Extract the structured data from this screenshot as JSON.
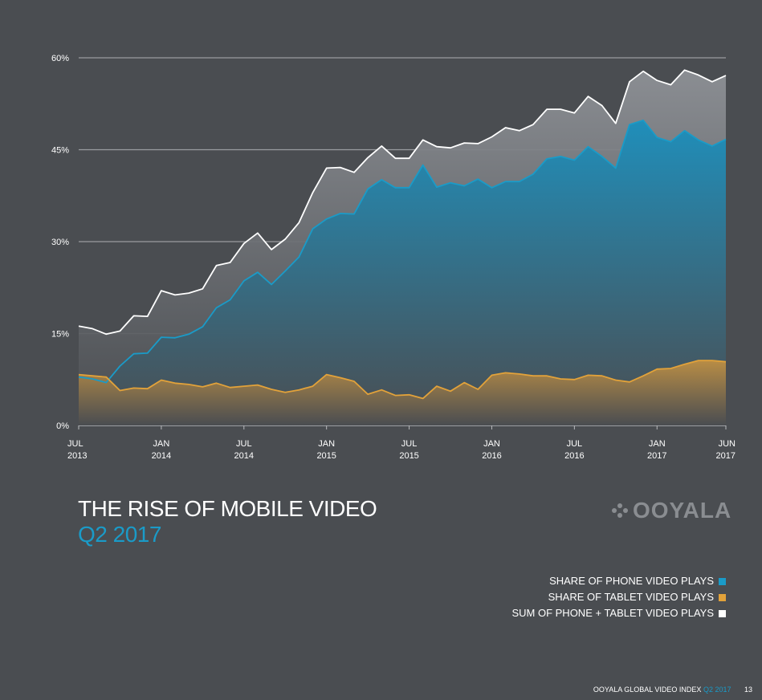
{
  "chart_data": {
    "type": "area",
    "ylim": [
      0,
      60
    ],
    "yticks": [
      "0%",
      "15%",
      "30%",
      "45%",
      "60%"
    ],
    "ytick_values": [
      0,
      15,
      30,
      45,
      60
    ],
    "xticks": [
      {
        "month": "JUL",
        "year": "2013",
        "index": 0
      },
      {
        "month": "JAN",
        "year": "2014",
        "index": 6
      },
      {
        "month": "JUL",
        "year": "2014",
        "index": 12
      },
      {
        "month": "JAN",
        "year": "2015",
        "index": 18
      },
      {
        "month": "JUL",
        "year": "2015",
        "index": 24
      },
      {
        "month": "JAN",
        "year": "2016",
        "index": 30
      },
      {
        "month": "JUL",
        "year": "2016",
        "index": 36
      },
      {
        "month": "JAN",
        "year": "2017",
        "index": 42
      },
      {
        "month": "JUN",
        "year": "2017",
        "index": 47
      }
    ],
    "grid": true,
    "legend_position": "bottom-right",
    "series": [
      {
        "name": "SUM OF PHONE + TABLET VIDEO PLAYS",
        "color": "#ffffff",
        "values": [
          16.2,
          15.8,
          14.9,
          15.4,
          17.9,
          17.8,
          22.0,
          21.3,
          21.6,
          22.3,
          26.1,
          26.6,
          29.7,
          31.4,
          28.7,
          30.4,
          33.1,
          38.0,
          42.0,
          42.1,
          41.3,
          43.7,
          45.6,
          43.6,
          43.6,
          46.6,
          45.5,
          45.3,
          46.1,
          46.0,
          47.1,
          48.6,
          48.1,
          49.1,
          51.6,
          51.6,
          51.0,
          53.7,
          52.2,
          49.3,
          56.1,
          57.8,
          56.3,
          55.6,
          58.0,
          57.2,
          56.1,
          57.1
        ]
      },
      {
        "name": "SHARE OF PHONE VIDEO PLAYS",
        "color": "#1a9bc8",
        "values": [
          7.9,
          7.6,
          7.0,
          9.7,
          11.7,
          11.8,
          14.4,
          14.3,
          14.9,
          16.1,
          19.2,
          20.5,
          23.6,
          25.0,
          23.0,
          25.2,
          27.5,
          32.1,
          33.7,
          34.6,
          34.5,
          38.6,
          40.1,
          38.8,
          38.8,
          42.5,
          38.9,
          39.6,
          39.1,
          40.2,
          38.8,
          39.8,
          39.8,
          41.0,
          43.5,
          43.9,
          43.3,
          45.5,
          43.9,
          42.0,
          49.1,
          49.8,
          47.0,
          46.3,
          48.1,
          46.6,
          45.6,
          46.7
        ]
      },
      {
        "name": "SHARE OF TABLET VIDEO PLAYS",
        "color": "#e2a23a",
        "values": [
          8.3,
          8.1,
          7.9,
          5.7,
          6.1,
          6.0,
          7.4,
          6.9,
          6.7,
          6.3,
          6.9,
          6.2,
          6.4,
          6.6,
          5.9,
          5.4,
          5.8,
          6.4,
          8.3,
          7.8,
          7.2,
          5.1,
          5.8,
          4.9,
          5.0,
          4.4,
          6.4,
          5.6,
          7.0,
          5.9,
          8.2,
          8.6,
          8.4,
          8.1,
          8.1,
          7.6,
          7.5,
          8.2,
          8.1,
          7.4,
          7.1,
          8.1,
          9.2,
          9.3,
          10.0,
          10.6,
          10.6,
          10.4
        ]
      }
    ]
  },
  "title": "THE RISE OF MOBILE VIDEO",
  "subtitle": "Q2 2017",
  "logo_text": "OOYALA",
  "legend": [
    {
      "label": "SHARE OF PHONE VIDEO PLAYS",
      "color": "#1a9bc8"
    },
    {
      "label": "SHARE OF TABLET VIDEO PLAYS",
      "color": "#e2a23a"
    },
    {
      "label": "SUM OF PHONE + TABLET VIDEO PLAYS",
      "color": "#ffffff"
    }
  ],
  "footer": {
    "text": "OOYALA GLOBAL VIDEO INDEX",
    "quarter": "Q2 2017",
    "page": "13"
  }
}
